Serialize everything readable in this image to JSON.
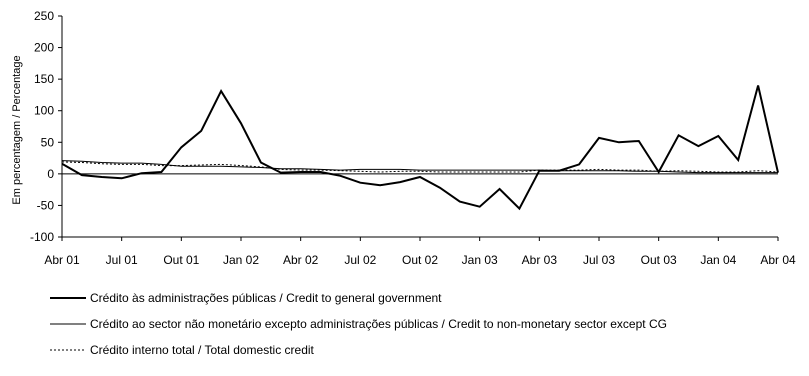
{
  "chart_data": {
    "type": "line",
    "title": "",
    "xlabel": "",
    "ylabel": "Em percentagem / Percentage",
    "ylim": [
      -100,
      250
    ],
    "yticks": [
      -100,
      -50,
      0,
      50,
      100,
      150,
      200,
      250
    ],
    "grid": false,
    "legend_position": "bottom",
    "x_tick_labels": [
      "Abr 01",
      "Jul 01",
      "Out 01",
      "Jan 02",
      "Abr 02",
      "Jul 02",
      "Out 02",
      "Jan 03",
      "Abr 03",
      "Jul 03",
      "Out 03",
      "Jan 04",
      "Abr 04"
    ],
    "x": [
      "Abr 01",
      "Mai 01",
      "Jun 01",
      "Jul 01",
      "Ago 01",
      "Set 01",
      "Out 01",
      "Nov 01",
      "Dez 01",
      "Jan 02",
      "Fev 02",
      "Mar 02",
      "Abr 02",
      "Mai 02",
      "Jun 02",
      "Jul 02",
      "Ago 02",
      "Set 02",
      "Out 02",
      "Nov 02",
      "Dez 02",
      "Jan 03",
      "Fev 03",
      "Mar 03",
      "Abr 03",
      "Mai 03",
      "Jun 03",
      "Jul 03",
      "Ago 03",
      "Set 03",
      "Out 03",
      "Nov 03",
      "Dez 03",
      "Jan 04",
      "Fev 04",
      "Mar 04",
      "Abr 04"
    ],
    "series": [
      {
        "name": "Crédito às administrações públicas / Credit to general government",
        "style": "thick",
        "color": "#000000",
        "values": [
          16,
          -2,
          -5,
          -7,
          1,
          3,
          42,
          68,
          131,
          80,
          18,
          2,
          3,
          3,
          -3,
          -14,
          -18,
          -13,
          -5,
          -22,
          -44,
          -52,
          -24,
          -55,
          5,
          5,
          15,
          57,
          50,
          52,
          3,
          61,
          44,
          60,
          22,
          140,
          2
        ]
      },
      {
        "name": "Crédito ao sector não monetário excepto administrações públicas / Credit to non-monetary sector except CG",
        "style": "thin",
        "color": "#000000",
        "values": [
          21,
          20,
          18,
          17,
          17,
          15,
          12,
          12,
          12,
          11,
          10,
          8,
          8,
          7,
          6,
          7,
          7,
          7,
          6,
          6,
          6,
          6,
          6,
          6,
          6,
          5,
          5,
          5,
          5,
          4,
          4,
          3,
          2,
          2,
          2,
          2,
          2
        ]
      },
      {
        "name": "Crédito interno total / Total domestic credit",
        "style": "dotted",
        "color": "#000000",
        "values": [
          19,
          18,
          16,
          15,
          15,
          13,
          13,
          14,
          15,
          13,
          11,
          7,
          6,
          6,
          5,
          4,
          3,
          4,
          4,
          3,
          3,
          3,
          3,
          3,
          6,
          6,
          6,
          7,
          6,
          6,
          4,
          5,
          4,
          3,
          3,
          5,
          3
        ]
      }
    ]
  }
}
